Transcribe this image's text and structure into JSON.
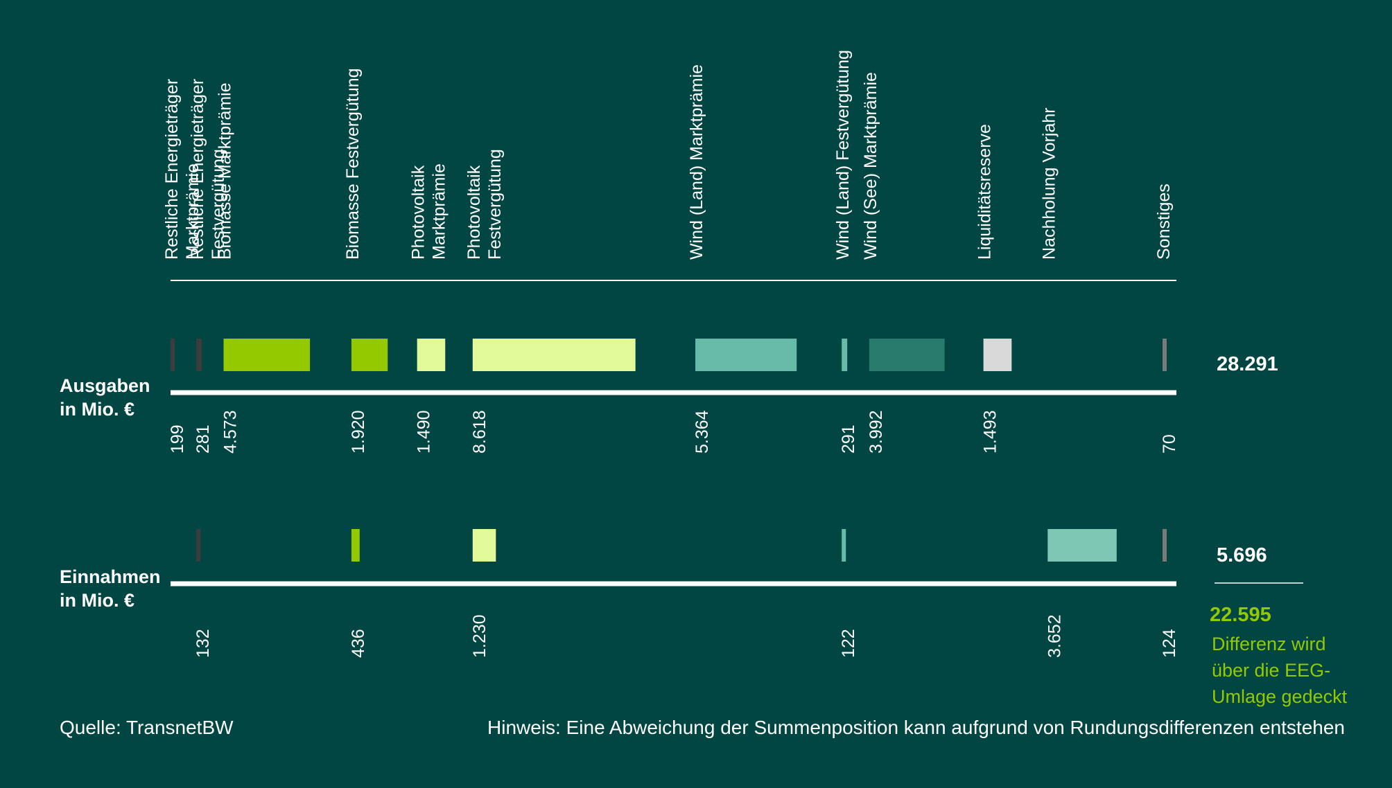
{
  "chart_data": {
    "type": "bar",
    "categories": [
      "Restliche Energieträger\nMarktprämie",
      "Restliche Energieträger\nFestvergütung",
      "Biomasse Marktprämie",
      "Biomasse Festvergütung",
      "Photovoltaik\nMarktprämie",
      "Photovoltaik\nFestvergütung",
      "Wind (Land) Marktprämie",
      "Wind (Land) Festvergütung",
      "Wind (See) Marktprämie",
      "Liquiditätsreserve",
      "Nachholung Vorjahr",
      "Sonstiges"
    ],
    "colors": [
      "#3d3c3c",
      "#3d3c3c",
      "#94c900",
      "#94c900",
      "#e2f99a",
      "#e2f99a",
      "#69bba9",
      "#69bba9",
      "#267b6c",
      "#d9d9d9",
      "#7fc7b5",
      "#7a7a7a"
    ],
    "series": [
      {
        "name": "Ausgaben\nin Mio. €",
        "values": [
          199,
          281,
          4573,
          1920,
          1490,
          8618,
          5364,
          291,
          3992,
          1493,
          null,
          70
        ],
        "labels": [
          "199",
          "281",
          "4.573",
          "1.920",
          "1.490",
          "8.618",
          "5.364",
          "291",
          "3.992",
          "1.493",
          "",
          "70"
        ],
        "total": "28.291"
      },
      {
        "name": "Einnahmen\nin Mio. €",
        "values": [
          null,
          132,
          null,
          436,
          null,
          1230,
          null,
          122,
          null,
          null,
          3652,
          124
        ],
        "labels": [
          "",
          "132",
          "",
          "436",
          "",
          "1.230",
          "",
          "122",
          "",
          "",
          "3.652",
          "124"
        ],
        "total": "5.696"
      }
    ],
    "difference": {
      "value": "22.595",
      "text": "Differenz wird\nüber die EEG-\nUmlage gedeckt",
      "color": "#94c900"
    },
    "source": "Quelle: TransnetBW",
    "note": "Hinweis: Eine Abweichung der Summenposition kann aufgrund von Rundungsdifferenzen entstehen"
  }
}
